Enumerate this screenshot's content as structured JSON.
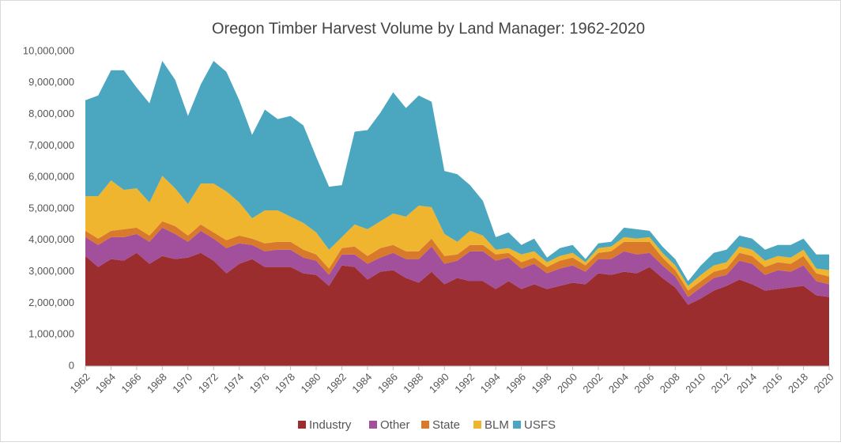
{
  "chart_data": {
    "type": "stacked_area",
    "title": "Oregon Timber Harvest Volume by Land Manager: 1962-2020",
    "x": [
      1962,
      1963,
      1964,
      1965,
      1966,
      1967,
      1968,
      1969,
      1970,
      1971,
      1972,
      1973,
      1974,
      1975,
      1976,
      1977,
      1978,
      1979,
      1980,
      1981,
      1982,
      1983,
      1984,
      1985,
      1986,
      1987,
      1988,
      1989,
      1990,
      1991,
      1992,
      1993,
      1994,
      1995,
      1996,
      1997,
      1998,
      1999,
      2000,
      2001,
      2002,
      2003,
      2004,
      2005,
      2006,
      2007,
      2008,
      2009,
      2010,
      2011,
      2012,
      2013,
      2014,
      2015,
      2016,
      2017,
      2018,
      2019,
      2020
    ],
    "xlim": [
      1962,
      2020
    ],
    "xticks": [
      1962,
      1964,
      1966,
      1968,
      1970,
      1972,
      1974,
      1976,
      1978,
      1980,
      1982,
      1984,
      1986,
      1988,
      1990,
      1992,
      1994,
      1996,
      1998,
      2000,
      2002,
      2004,
      2006,
      2008,
      2010,
      2012,
      2014,
      2016,
      2018,
      2020
    ],
    "ylim": [
      0,
      10000000
    ],
    "yticks": [
      0,
      {
        "value": 1000000,
        "label": "1,000,000"
      },
      {
        "value": 2000000,
        "label": "2,000,000"
      },
      {
        "value": 3000000,
        "label": "3,000,000"
      },
      {
        "value": 4000000,
        "label": "4,000,000"
      },
      {
        "value": 5000000,
        "label": "5,000,000"
      },
      {
        "value": 6000000,
        "label": "6,000,000"
      },
      {
        "value": 7000000,
        "label": "7,000,000"
      },
      {
        "value": 8000000,
        "label": "8,000,000"
      },
      {
        "value": 9000000,
        "label": "9,000,000"
      },
      {
        "value": 10000000,
        "label": "10,000,000"
      }
    ],
    "grid": false,
    "legend": "bottom",
    "series": [
      {
        "name": "Industry",
        "color": "#9b2d2f",
        "values": [
          3500000,
          3150000,
          3400000,
          3350000,
          3600000,
          3250000,
          3500000,
          3400000,
          3450000,
          3600000,
          3350000,
          2950000,
          3250000,
          3400000,
          3150000,
          3150000,
          3150000,
          2950000,
          2900000,
          2550000,
          3200000,
          3150000,
          2750000,
          3000000,
          3050000,
          2800000,
          2650000,
          3000000,
          2600000,
          2800000,
          2700000,
          2700000,
          2450000,
          2700000,
          2450000,
          2600000,
          2450000,
          2550000,
          2650000,
          2600000,
          2950000,
          2900000,
          3000000,
          2950000,
          3150000,
          2800000,
          2500000,
          1950000,
          2150000,
          2400000,
          2550000,
          2750000,
          2600000,
          2400000,
          2450000,
          2500000,
          2550000,
          2250000,
          2200000
        ]
      },
      {
        "name": "Other",
        "color": "#a24f9c",
        "values": [
          600000,
          700000,
          700000,
          750000,
          600000,
          700000,
          900000,
          800000,
          500000,
          700000,
          700000,
          800000,
          650000,
          450000,
          500000,
          550000,
          550000,
          500000,
          450000,
          350000,
          350000,
          400000,
          500000,
          450000,
          550000,
          600000,
          750000,
          800000,
          650000,
          550000,
          950000,
          950000,
          900000,
          750000,
          650000,
          650000,
          500000,
          550000,
          550000,
          400000,
          450000,
          500000,
          650000,
          600000,
          450000,
          400000,
          350000,
          250000,
          350000,
          400000,
          350000,
          600000,
          650000,
          500000,
          600000,
          500000,
          650000,
          450000,
          400000
        ]
      },
      {
        "name": "State",
        "color": "#d9792b",
        "values": [
          200000,
          200000,
          200000,
          250000,
          200000,
          200000,
          200000,
          250000,
          200000,
          200000,
          200000,
          250000,
          250000,
          200000,
          250000,
          250000,
          250000,
          250000,
          200000,
          200000,
          200000,
          250000,
          250000,
          300000,
          250000,
          250000,
          250000,
          250000,
          250000,
          200000,
          200000,
          200000,
          200000,
          150000,
          200000,
          200000,
          200000,
          250000,
          250000,
          200000,
          200000,
          250000,
          300000,
          400000,
          350000,
          250000,
          200000,
          200000,
          200000,
          200000,
          200000,
          250000,
          250000,
          250000,
          250000,
          250000,
          300000,
          250000,
          250000
        ]
      },
      {
        "name": "BLM",
        "color": "#efb52f",
        "values": [
          1100000,
          1350000,
          1600000,
          1250000,
          1250000,
          1050000,
          1450000,
          1200000,
          1000000,
          1300000,
          1550000,
          1550000,
          1050000,
          650000,
          1050000,
          1000000,
          800000,
          850000,
          700000,
          600000,
          350000,
          700000,
          850000,
          850000,
          1000000,
          1100000,
          1450000,
          1000000,
          700000,
          400000,
          450000,
          300000,
          150000,
          150000,
          250000,
          200000,
          150000,
          150000,
          150000,
          100000,
          150000,
          150000,
          150000,
          100000,
          150000,
          150000,
          150000,
          150000,
          200000,
          200000,
          200000,
          200000,
          200000,
          200000,
          200000,
          200000,
          200000,
          150000,
          200000
        ]
      },
      {
        "name": "USFS",
        "color": "#4aa7bf",
        "values": [
          3050000,
          3200000,
          3500000,
          3800000,
          3200000,
          3150000,
          3650000,
          3450000,
          2800000,
          3150000,
          3900000,
          3800000,
          3250000,
          2650000,
          3200000,
          2900000,
          3200000,
          3100000,
          2400000,
          2000000,
          1650000,
          2950000,
          3150000,
          3450000,
          3850000,
          3450000,
          3500000,
          3350000,
          2000000,
          2150000,
          1450000,
          1100000,
          400000,
          500000,
          300000,
          400000,
          150000,
          250000,
          250000,
          100000,
          150000,
          150000,
          300000,
          300000,
          200000,
          200000,
          200000,
          150000,
          300000,
          400000,
          400000,
          350000,
          350000,
          350000,
          350000,
          400000,
          350000,
          450000,
          500000
        ]
      }
    ]
  }
}
